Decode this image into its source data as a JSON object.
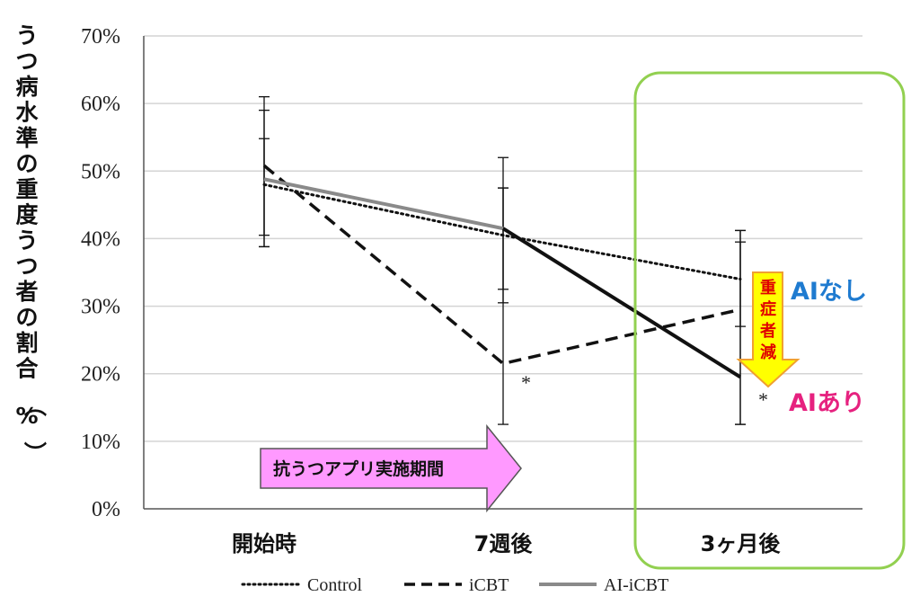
{
  "chart_data": {
    "type": "line",
    "ylabel": "うつ病水準の重度うつ者の割合（%）",
    "categories": [
      "開始時",
      "7週後",
      "3ヶ月後"
    ],
    "y_ticks": [
      "0%",
      "10%",
      "20%",
      "30%",
      "40%",
      "50%",
      "60%",
      "70%"
    ],
    "ylim": [
      0,
      70
    ],
    "grid": true,
    "legend_position": "bottom",
    "series": [
      {
        "name": "Control",
        "style": "dotted",
        "color": "#111111",
        "values": [
          48,
          40.5,
          34
        ],
        "err_low": [
          38.8,
          30.5,
          27
        ],
        "err_high": [
          59,
          47.5,
          39.5
        ]
      },
      {
        "name": "iCBT",
        "style": "dashed",
        "color": "#111111",
        "values": [
          50.8,
          21.5,
          29.5
        ],
        "err_low": [
          40.5,
          12.5,
          12.5
        ],
        "err_high": [
          61,
          52,
          41.2
        ]
      },
      {
        "name": "AI-iCBT",
        "style": "solid-gray-then-black",
        "color": "#8a8a8a",
        "values": [
          48.8,
          41.5,
          19.5
        ],
        "err_low": [
          38.8,
          32.5,
          12.5
        ],
        "err_high": [
          54.8,
          47.5,
          41.2
        ]
      }
    ],
    "significance_markers": [
      {
        "text": "*",
        "category_index": 1,
        "y": 19
      },
      {
        "text": "*",
        "category_index": 2,
        "y": 16.5
      }
    ],
    "annotations": {
      "app_period": "抗うつアプリ実施期間",
      "no_ai": "AIなし",
      "with_ai": "AIあり",
      "reduction": "重症者減"
    },
    "colors": {
      "highlight_box": "#92d050",
      "app_arrow_fill": "#ff99ff",
      "reduction_arrow_fill": "#ffff00",
      "reduction_arrow_stroke": "#f0a030"
    }
  }
}
